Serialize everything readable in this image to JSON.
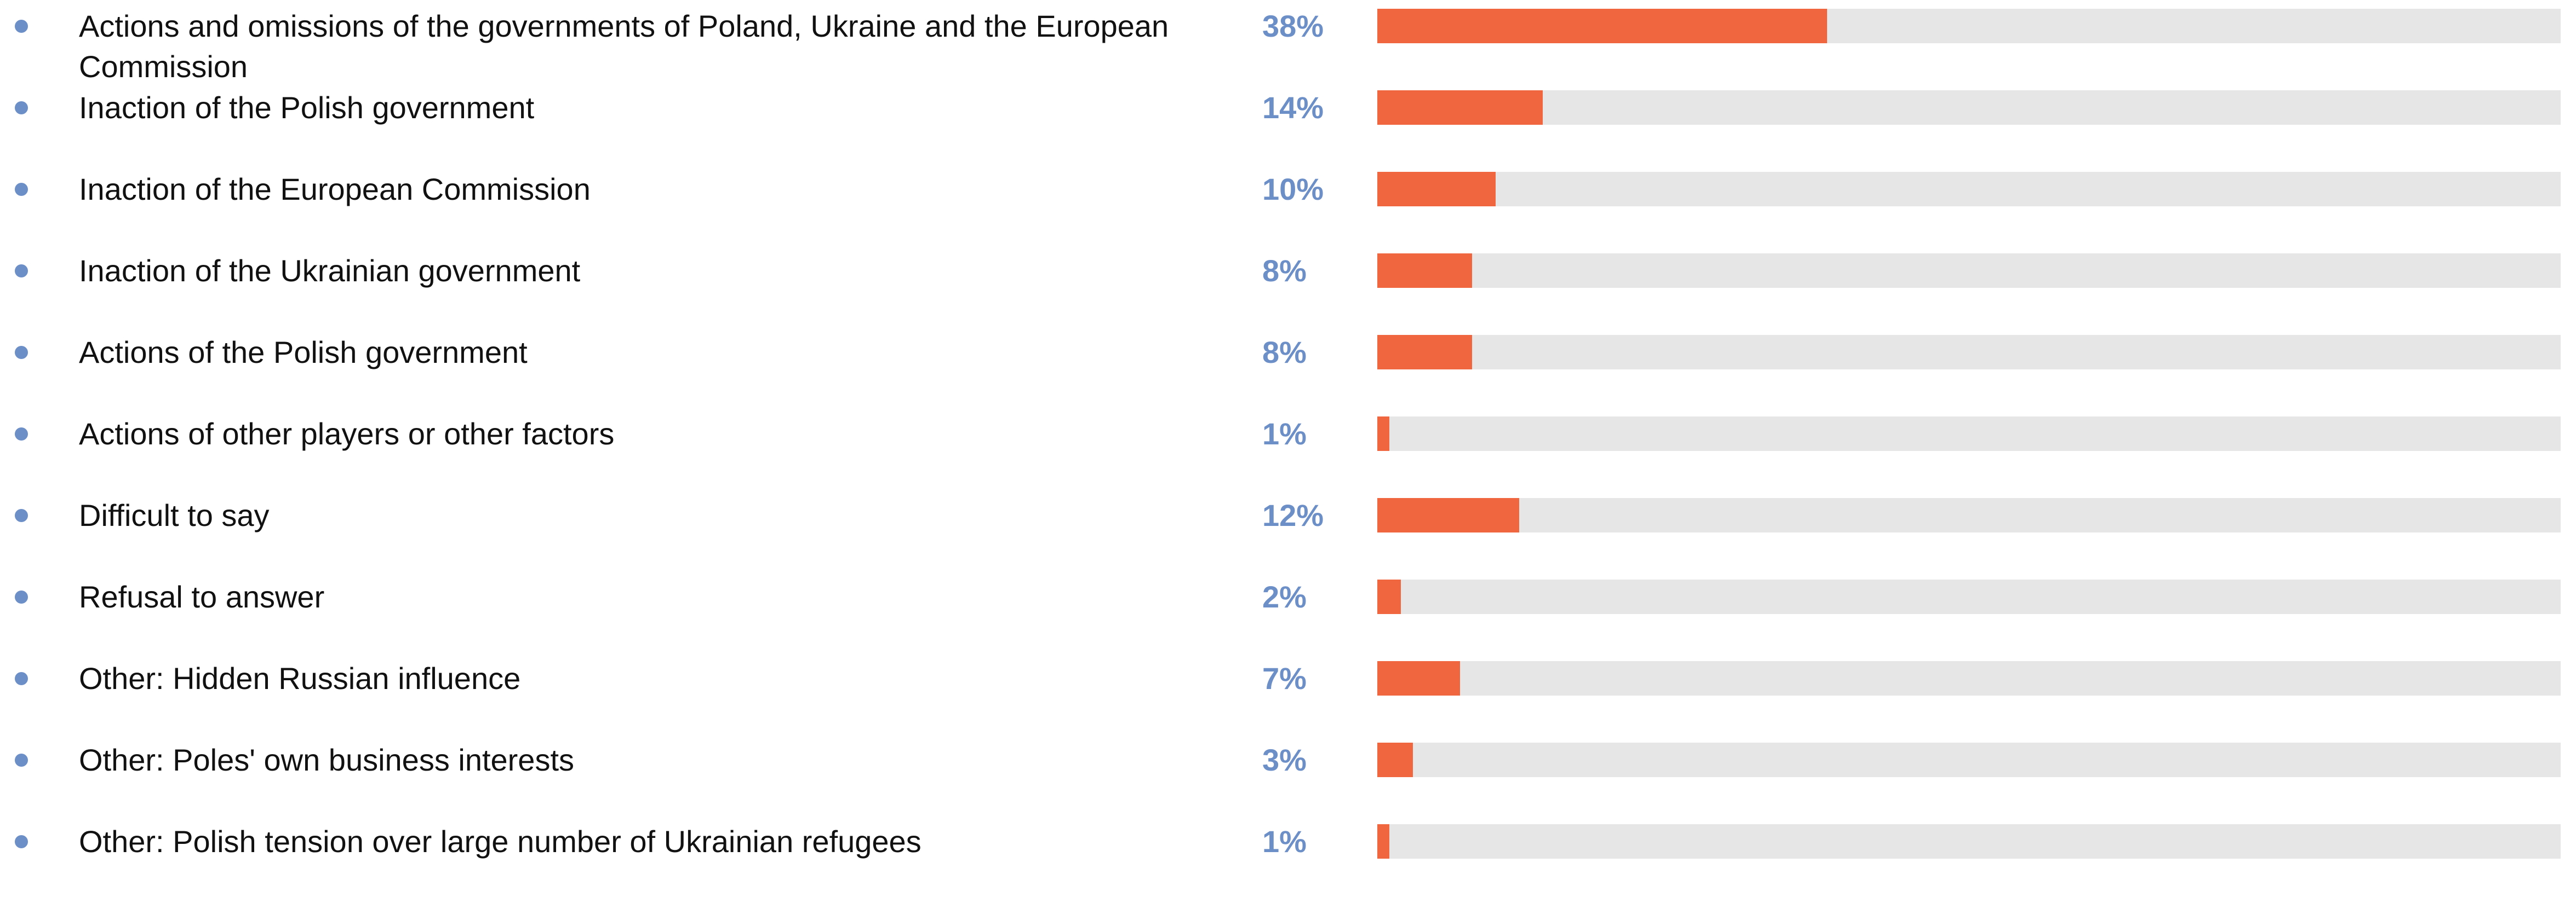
{
  "chart_data": {
    "type": "bar",
    "orientation": "horizontal",
    "categories": [
      "Actions and omissions of the governments of Poland, Ukraine and the European Commission",
      "Inaction of the Polish government",
      "Inaction of the European Commission",
      "Inaction of the Ukrainian government",
      "Actions of the Polish government",
      "Actions of other players or other factors",
      "Difficult to say",
      "Refusal to answer",
      "Other: Hidden Russian influence",
      "Other: Poles' own business interests",
      "Other: Polish tension over large number of Ukrainian refugees"
    ],
    "values": [
      38,
      14,
      10,
      8,
      8,
      1,
      12,
      2,
      7,
      3,
      1
    ],
    "value_labels": [
      "38%",
      "14%",
      "10%",
      "8%",
      "8%",
      "1%",
      "12%",
      "2%",
      "7%",
      "3%",
      "1%"
    ],
    "xlim": [
      0,
      100
    ],
    "color": "#f0663f",
    "track_color": "#e6e6e6",
    "bullet_color": "#6d8fc8",
    "value_label_color": "#6d8fc8"
  }
}
